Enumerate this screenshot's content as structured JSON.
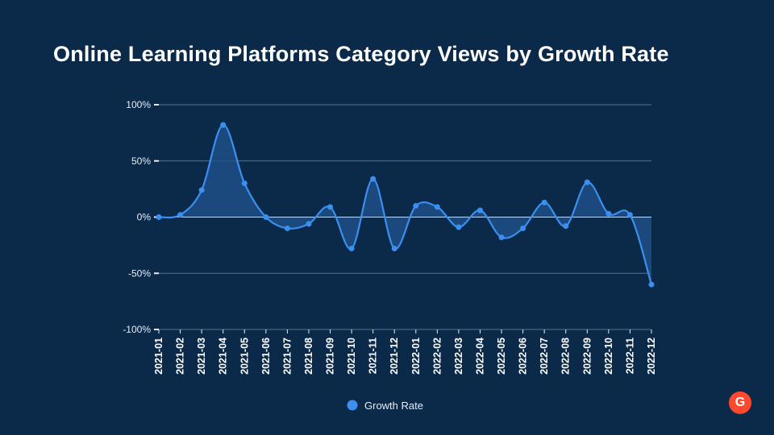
{
  "page": {
    "title": "Online Learning Platforms Category Views by Growth Rate",
    "logo_text": "G"
  },
  "colors": {
    "background": "#0b2a4a",
    "line": "#3b8ff0",
    "area": "#1e4f86",
    "grid": "#5a7390",
    "logo": "#ff492c"
  },
  "chart_data": {
    "type": "area",
    "title": "Online Learning Platforms Category Views by Growth Rate",
    "categories": [
      "2021-01",
      "2021-02",
      "2021-03",
      "2021-04",
      "2021-05",
      "2021-06",
      "2021-07",
      "2021-08",
      "2021-09",
      "2021-10",
      "2021-11",
      "2021-12",
      "2022-01",
      "2022-02",
      "2022-03",
      "2022-04",
      "2022-05",
      "2022-06",
      "2022-07",
      "2022-08",
      "2022-09",
      "2022-10",
      "2022-11",
      "2022-12"
    ],
    "series": [
      {
        "name": "Growth Rate",
        "values": [
          0,
          2,
          24,
          82,
          30,
          0,
          -10,
          -6,
          9,
          -28,
          34,
          -28,
          10,
          9,
          -9,
          6,
          -18,
          -10,
          13,
          -8,
          31,
          3,
          2,
          -60
        ]
      }
    ],
    "y_ticks": [
      100,
      50,
      0,
      -50,
      -100
    ],
    "y_tick_labels": [
      "100%",
      "50%",
      "0%",
      "-50%",
      "-100%"
    ],
    "ylim": [
      -100,
      100
    ],
    "grid": true,
    "legend": "bottom"
  }
}
